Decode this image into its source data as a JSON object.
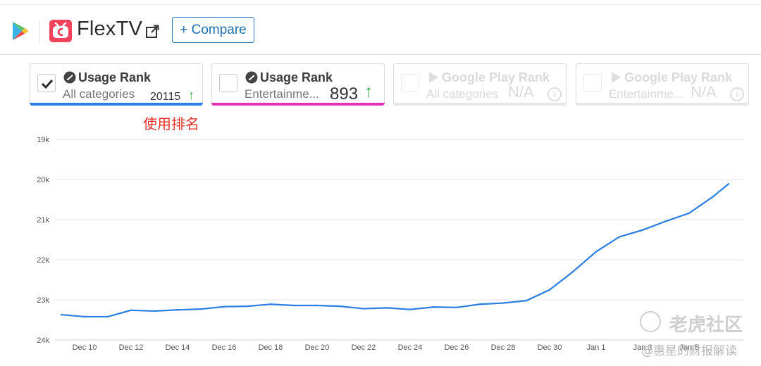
{
  "header": {
    "app_name": "FlexTV",
    "compare_label": "+ Compare"
  },
  "cards": [
    {
      "title": "Usage Rank",
      "subtitle": "All categories",
      "value": "20115",
      "arrow": "↑",
      "checked": true,
      "accent": "#2a7de1",
      "source_icon": "similarweb-icon"
    },
    {
      "title": "Usage Rank",
      "subtitle": "Entertainme...",
      "value": "893",
      "arrow": "↑",
      "checked": false,
      "accent": "#e62fb5",
      "source_icon": "similarweb-icon"
    },
    {
      "title": "Google Play Rank",
      "subtitle": "All categories",
      "value": "N/A",
      "info": "i",
      "checked": false,
      "disabled": true,
      "source_icon": "google-play-icon"
    },
    {
      "title": "Google Play Rank",
      "subtitle": "Entertainme...",
      "value": "N/A",
      "info": "i",
      "checked": false,
      "disabled": true,
      "source_icon": "google-play-icon"
    }
  ],
  "annotation": "使用排名",
  "watermark": {
    "logo_text": "老虎社区",
    "sub_text": "@惠星的财报解读"
  },
  "chart_data": {
    "type": "line",
    "y_reversed": true,
    "ylim": [
      19000,
      24000
    ],
    "y_ticks": [
      19000,
      20000,
      21000,
      22000,
      23000,
      24000
    ],
    "y_tick_labels": [
      "19k",
      "20k",
      "21k",
      "22k",
      "23k",
      "24k"
    ],
    "x_tick_labels": [
      "Dec 10",
      "Dec 12",
      "Dec 14",
      "Dec 16",
      "Dec 18",
      "Dec 20",
      "Dec 22",
      "Dec 24",
      "Dec 26",
      "Dec 28",
      "Dec 30",
      "Jan 1",
      "Jan 3",
      "Jan 5"
    ],
    "grid": true,
    "series": [
      {
        "color": "#2a7de1",
        "x": [
          "Dec 9",
          "Dec 10",
          "Dec 11",
          "Dec 12",
          "Dec 13",
          "Dec 14",
          "Dec 15",
          "Dec 16",
          "Dec 17",
          "Dec 18",
          "Dec 19",
          "Dec 20",
          "Dec 21",
          "Dec 22",
          "Dec 23",
          "Dec 24",
          "Dec 25",
          "Dec 26",
          "Dec 27",
          "Dec 28",
          "Dec 29",
          "Dec 30",
          "Dec 31",
          "Jan 1",
          "Jan 2",
          "Jan 3",
          "Jan 4",
          "Jan 5",
          "Jan 6",
          "Jan 7"
        ],
        "values": [
          23370,
          23420,
          23420,
          23260,
          23280,
          23250,
          23230,
          23170,
          23160,
          23110,
          23140,
          23140,
          23160,
          23220,
          23200,
          23240,
          23180,
          23190,
          23110,
          23080,
          23020,
          22750,
          22300,
          21800,
          21430,
          21260,
          21040,
          20840,
          20440,
          20110
        ]
      }
    ]
  }
}
